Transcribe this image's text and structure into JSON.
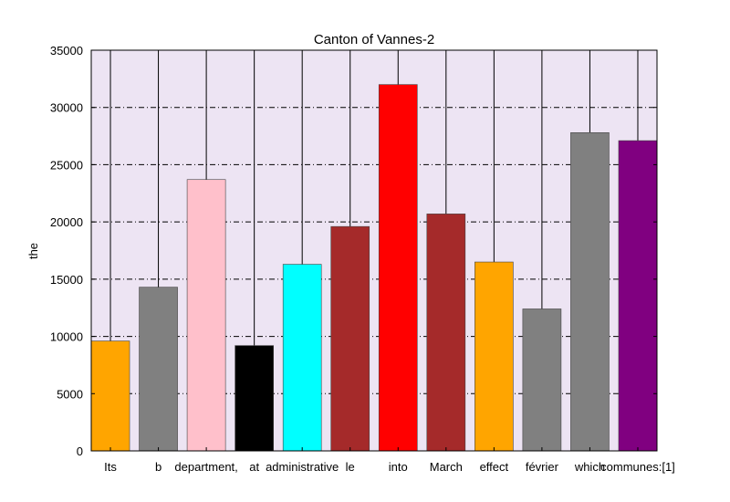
{
  "chart_data": {
    "type": "bar",
    "title": "Canton of Vannes-2",
    "xlabel": "",
    "ylabel": "the",
    "ylim": [
      0,
      35000
    ],
    "yticks": [
      0,
      5000,
      10000,
      15000,
      20000,
      25000,
      30000,
      35000
    ],
    "grid": true,
    "legend": "none",
    "categories": [
      "Its",
      "b",
      "department,",
      "at",
      "administrative",
      "le",
      "into",
      "March",
      "effect",
      "février",
      "which",
      "communes:[1]"
    ],
    "values": [
      9600,
      14300,
      23700,
      9200,
      16300,
      19600,
      32000,
      20700,
      16500,
      12400,
      27800,
      27100
    ],
    "colors": [
      "#ffa500",
      "#808080",
      "#ffc0cb",
      "#000000",
      "#00ffff",
      "#a52a2a",
      "#ff0000",
      "#a52a2a",
      "#ffa500",
      "#808080",
      "#808080",
      "#800080"
    ],
    "background_color": "#ede4f3"
  }
}
